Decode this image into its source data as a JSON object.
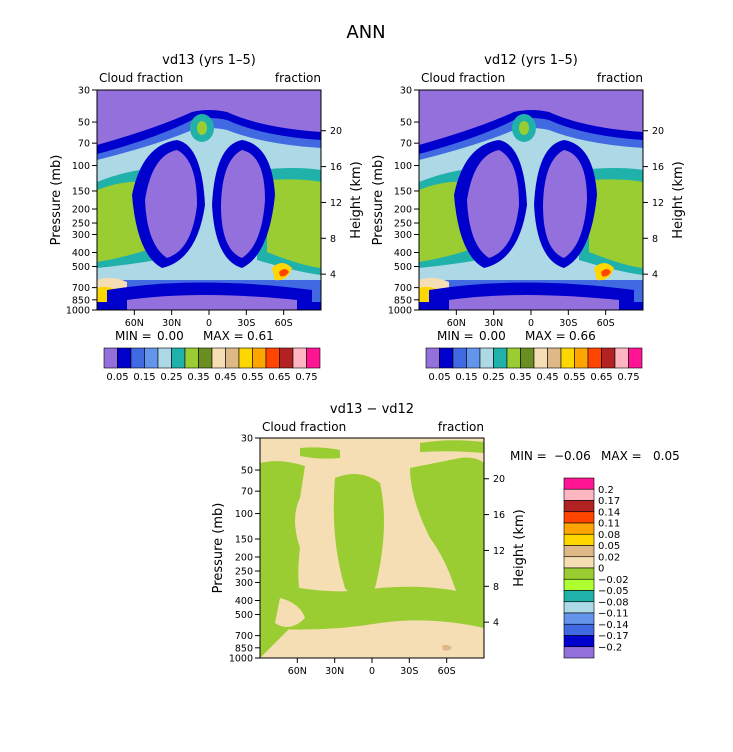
{
  "page_title": "ANN",
  "pressure_levels": [
    30,
    50,
    70,
    100,
    150,
    200,
    250,
    300,
    400,
    500,
    700,
    850,
    1000
  ],
  "height_ticks": [
    4,
    8,
    12,
    16,
    20
  ],
  "lat_ticks": [
    "60N",
    "30N",
    "0",
    "30S",
    "60S"
  ],
  "colors": {
    "main": [
      "#9370DB",
      "#0000CD",
      "#4169E1",
      "#6495ED",
      "#ADD8E6",
      "#20B2AA",
      "#9ACD32",
      "#6B8E23",
      "#F5DEB3",
      "#DEB887",
      "#FFD700",
      "#FFA500",
      "#FF4500",
      "#B22222",
      "#FFB6C1",
      "#FF1493"
    ],
    "diff": [
      "#FF1493",
      "#FFB6C1",
      "#B22222",
      "#FF4500",
      "#FFA500",
      "#FFD700",
      "#DEB887",
      "#F5DEB3",
      "#9ACD32",
      "#ADFF2F",
      "#20B2AA",
      "#ADD8E6",
      "#6495ED",
      "#4169E1",
      "#0000CD",
      "#9370DB"
    ]
  },
  "chart_data": [
    {
      "type": "heatmap",
      "title": "vd13 (yrs 1–5)",
      "subtitle_left": "Cloud fraction",
      "subtitle_right": "fraction",
      "ylabel": "Pressure (mb)",
      "ylabel_right": "Height (km)",
      "min_label": "MIN =",
      "min_value": "0.00",
      "max_label": "MAX =",
      "max_value": "0.61",
      "min": 0.0,
      "max": 0.61,
      "legend_levels": [
        "0.05",
        "0.15",
        "0.25",
        "0.35",
        "0.45",
        "0.55",
        "0.65",
        "0.75"
      ]
    },
    {
      "type": "heatmap",
      "title": "vd12 (yrs 1–5)",
      "subtitle_left": "Cloud fraction",
      "subtitle_right": "fraction",
      "ylabel": "Pressure (mb)",
      "ylabel_right": "Height (km)",
      "min_label": "MIN =",
      "min_value": "0.00",
      "max_label": "MAX =",
      "max_value": "0.66",
      "min": 0.0,
      "max": 0.66,
      "legend_levels": [
        "0.05",
        "0.15",
        "0.25",
        "0.35",
        "0.45",
        "0.55",
        "0.65",
        "0.75"
      ]
    },
    {
      "type": "heatmap",
      "title": "vd13 − vd12",
      "subtitle_left": "Cloud fraction",
      "subtitle_right": "fraction",
      "ylabel": "Pressure (mb)",
      "ylabel_right": "Height (km)",
      "min_label": "MIN =",
      "min_value": "−0.06",
      "max_label": "MAX =",
      "max_value": "0.05",
      "min": -0.06,
      "max": 0.05,
      "legend_levels": [
        "0.2",
        "0.17",
        "0.14",
        "0.11",
        "0.08",
        "0.05",
        "0.02",
        "0",
        "−0.02",
        "−0.05",
        "−0.08",
        "−0.11",
        "−0.14",
        "−0.17",
        "−0.2"
      ]
    }
  ]
}
